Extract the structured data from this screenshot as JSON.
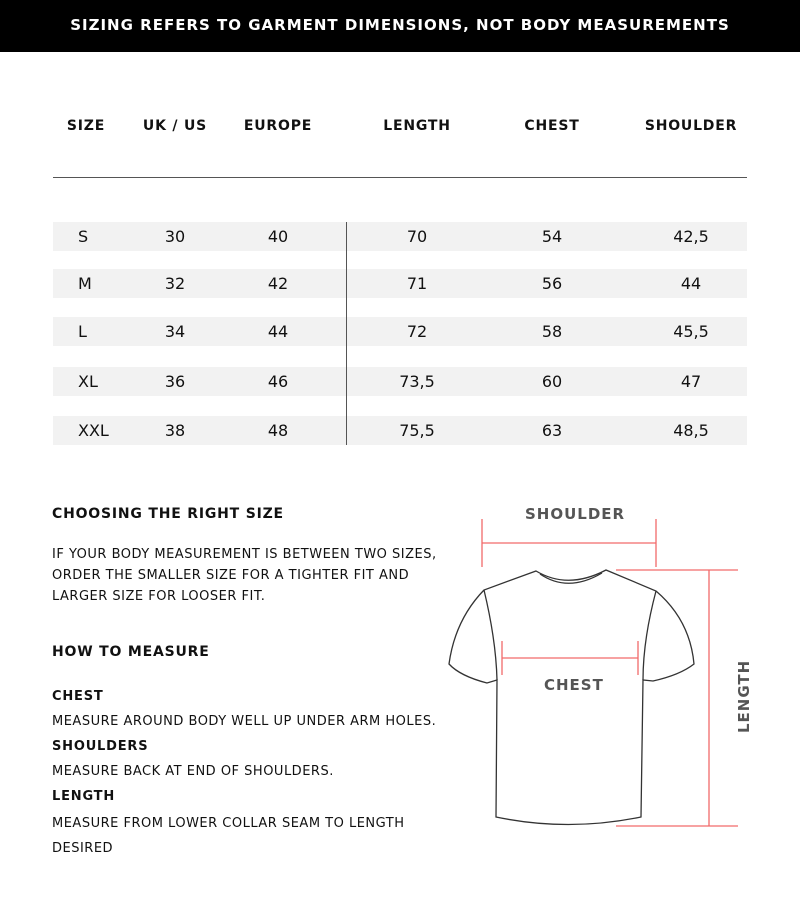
{
  "banner": "SIZING REFERS TO GARMENT DIMENSIONS, NOT BODY MEASUREMENTS",
  "table": {
    "headers": [
      "SIZE",
      "UK / US",
      "EUROPE",
      "LENGTH",
      "CHEST",
      "SHOULDER"
    ],
    "rows": [
      [
        "S",
        "30",
        "40",
        "70",
        "54",
        "42,5"
      ],
      [
        "M",
        "32",
        "42",
        "71",
        "56",
        "44"
      ],
      [
        "L",
        "34",
        "44",
        "72",
        "58",
        "45,5"
      ],
      [
        "XL",
        "36",
        "46",
        "73,5",
        "60",
        "47"
      ],
      [
        "XXL",
        "38",
        "48",
        "75,5",
        "63",
        "48,5"
      ]
    ]
  },
  "guide": {
    "choosing_title": "CHOOSING THE RIGHT SIZE",
    "choosing_text": "IF YOUR BODY MEASUREMENT IS BETWEEN TWO SIZES, ORDER THE SMALLER SIZE FOR A TIGHTER FIT AND LARGER SIZE FOR LOOSER FIT.",
    "how_title": "HOW TO MEASURE",
    "chest_title": "CHEST",
    "chest_text": "MEASURE AROUND BODY WELL UP UNDER ARM HOLES.",
    "shoulders_title": "SHOULDERS",
    "shoulders_text": "MEASURE BACK AT END OF SHOULDERS.",
    "length_title": "LENGTH",
    "length_text": "MEASURE FROM LOWER COLLAR SEAM TO LENGTH DESIRED"
  },
  "diagram": {
    "shoulder": "SHOULDER",
    "chest": "CHEST",
    "length": "LENGTH",
    "line_color": "#f26a6a"
  }
}
